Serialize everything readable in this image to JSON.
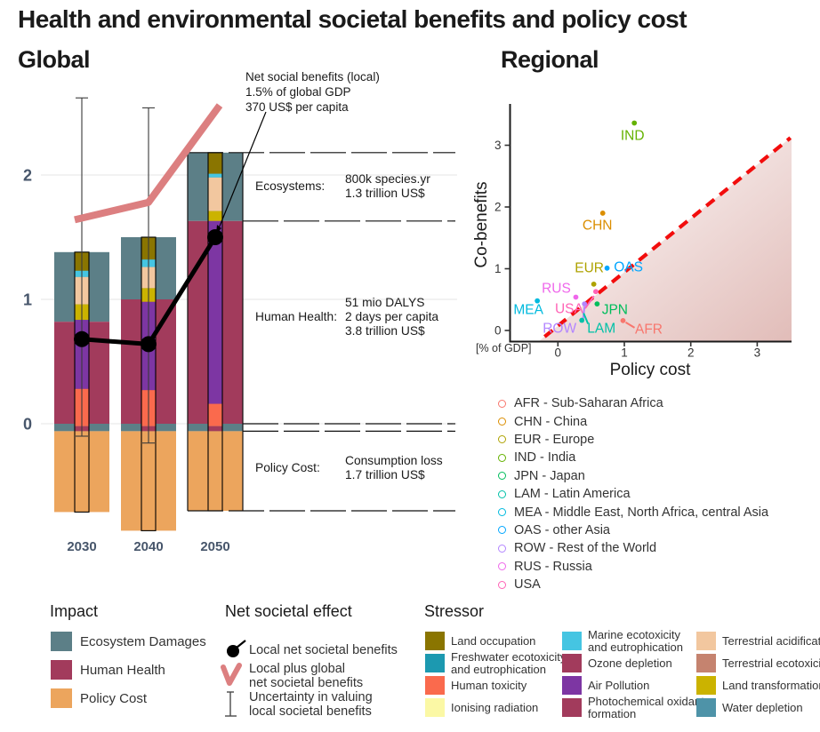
{
  "title": "Health and environmental societal benefits and policy cost",
  "colors": {
    "impact": {
      "Ecosystem Damages": "#5C7F87",
      "Human Health": "#A23B5C",
      "Policy Cost": "#ECA55D"
    },
    "stressor": {
      "Land occupation": "#8A7500",
      "Freshwater ecotoxicity and eutrophication": "#1C99B0",
      "Human toxicity": "#FA6A4D",
      "Ionising radiation": "#FBF8A5",
      "Marine ecotoxicity and eutrophication": "#45C5E2",
      "Ozone depletion": "#A23B5C",
      "Air Pollution": "#7D36A3",
      "Photochemical oxidant formation": "#A23B5C",
      "Terrestrial acidification": "#F2C79F",
      "Terrestrial ecotoxicity": "#C5836F",
      "Land transformation": "#CBB300",
      "Water depletion": "#4E93A8"
    },
    "regions": {
      "AFR": "#F8766D",
      "CHN": "#DB8E00",
      "EUR": "#AEA200",
      "IND": "#64B200",
      "JPN": "#00BD5C",
      "LAM": "#00C1A7",
      "MEA": "#00BADE",
      "OAS": "#00A6FF",
      "ROW": "#B385FF",
      "RUS": "#EF67EB",
      "USA": "#FF63B6"
    },
    "local_net_line": "#000000",
    "local_plus_global_line": "#DC7F80",
    "diagonal": "#F20D0D",
    "axis_text": "#47566B",
    "grid": "#EBEBEB"
  },
  "chart_data": [
    {
      "type": "bar",
      "title": "Global",
      "categories": [
        "2030",
        "2040",
        "2050"
      ],
      "yticks": [
        0,
        1,
        2
      ],
      "ylim": [
        -1.05,
        2.7
      ],
      "grid": true,
      "bars": [
        {
          "category": "2030",
          "impact": [
            {
              "name": "Ecosystem Damages",
              "from": 0.82,
              "to": 1.38
            },
            {
              "name": "Human Health",
              "from": 0,
              "to": 0.82
            },
            {
              "name": "Ecosystem Damages",
              "from": -0.06,
              "to": 0
            },
            {
              "name": "Policy Cost",
              "from": -0.71,
              "to": -0.06
            }
          ],
          "stressors": [
            {
              "name": "Land occupation",
              "from": 1.23,
              "to": 1.38
            },
            {
              "name": "Marine ecotoxicity and eutrophication",
              "from": 1.18,
              "to": 1.23
            },
            {
              "name": "Terrestrial acidification",
              "from": 0.96,
              "to": 1.18
            },
            {
              "name": "Land transformation",
              "from": 0.835,
              "to": 0.96
            },
            {
              "name": "Air Pollution",
              "from": 0.28,
              "to": 0.835
            },
            {
              "name": "Human toxicity",
              "from": -0.02,
              "to": 0.28
            },
            {
              "name": "Ozone depletion",
              "from": -0.06,
              "to": -0.02
            },
            {
              "name": "Policy Cost",
              "from": -0.71,
              "to": -0.06
            }
          ],
          "uncertainty": [
            -0.1,
            2.62
          ],
          "local_net": 0.68,
          "local_plus_global": 1.64
        },
        {
          "category": "2040",
          "impact": [
            {
              "name": "Ecosystem Damages",
              "from": 1.0,
              "to": 1.5
            },
            {
              "name": "Human Health",
              "from": 0,
              "to": 1.0
            },
            {
              "name": "Ecosystem Damages",
              "from": -0.06,
              "to": 0
            },
            {
              "name": "Policy Cost",
              "from": -0.86,
              "to": -0.06
            }
          ],
          "stressors": [
            {
              "name": "Land occupation",
              "from": 1.32,
              "to": 1.5
            },
            {
              "name": "Marine ecotoxicity and eutrophication",
              "from": 1.26,
              "to": 1.32
            },
            {
              "name": "Terrestrial acidification",
              "from": 1.09,
              "to": 1.26
            },
            {
              "name": "Land transformation",
              "from": 0.98,
              "to": 1.09
            },
            {
              "name": "Air Pollution",
              "from": 0.27,
              "to": 0.98
            },
            {
              "name": "Human toxicity",
              "from": -0.02,
              "to": 0.27
            },
            {
              "name": "Ozone depletion",
              "from": -0.06,
              "to": -0.02
            },
            {
              "name": "Policy Cost",
              "from": -0.86,
              "to": -0.06
            }
          ],
          "uncertainty": [
            -0.155,
            2.54
          ],
          "local_net": 0.64,
          "local_plus_global": 1.78
        },
        {
          "category": "2050",
          "impact": [
            {
              "name": "Ecosystem Damages",
              "from": 1.63,
              "to": 2.18
            },
            {
              "name": "Human Health",
              "from": 0,
              "to": 1.63
            },
            {
              "name": "Ecosystem Damages",
              "from": -0.06,
              "to": 0
            },
            {
              "name": "Policy Cost",
              "from": -0.7,
              "to": -0.06
            }
          ],
          "stressors": [
            {
              "name": "Land occupation",
              "from": 2.01,
              "to": 2.18
            },
            {
              "name": "Marine ecotoxicity and eutrophication",
              "from": 1.98,
              "to": 2.01
            },
            {
              "name": "Terrestrial acidification",
              "from": 1.71,
              "to": 1.98
            },
            {
              "name": "Land transformation",
              "from": 1.63,
              "to": 1.71
            },
            {
              "name": "Air Pollution",
              "from": 0.16,
              "to": 1.63
            },
            {
              "name": "Human toxicity",
              "from": -0.02,
              "to": 0.16
            },
            {
              "name": "Ozone depletion",
              "from": -0.06,
              "to": -0.02
            },
            {
              "name": "Policy Cost",
              "from": -0.7,
              "to": -0.06
            }
          ],
          "uncertainty": null,
          "local_net": 1.5,
          "local_plus_global": 2.56
        }
      ],
      "annotation": [
        "Net social benefits (local)",
        "1.5% of global GDP",
        "370 US$ per capita"
      ],
      "right_labels": [
        {
          "label": "Ecosystems:",
          "values": [
            "800k species.yr",
            "1.3 trillion US$"
          ],
          "from": 1.63,
          "to": 2.18
        },
        {
          "label": "Human Health:",
          "values": [
            "51 mio DALYS",
            "2 days per capita",
            "3.8 trillion US$"
          ],
          "from": 0,
          "to": 1.63
        },
        {
          "label": "Policy Cost:",
          "values": [
            "Consumption loss",
            "1.7 trillion US$"
          ],
          "from": -0.7,
          "to": -0.06
        }
      ]
    },
    {
      "type": "scatter",
      "title": "Regional",
      "xlabel": "Policy cost",
      "ylabel": "Co-benefits",
      "axis_unit": "[% of GDP]",
      "xticks": [
        0,
        1,
        2,
        3
      ],
      "yticks": [
        0,
        1,
        2,
        3
      ],
      "xlim": [
        -0.72,
        3.52
      ],
      "ylim": [
        -0.18,
        3.68
      ],
      "diagonal": {
        "from": [
          -0.2,
          -0.1
        ],
        "to": [
          3.5,
          3.12
        ],
        "style": "dashed"
      },
      "points": [
        {
          "code": "IND",
          "x": 1.15,
          "y": 3.36,
          "label_offset": [
            -2,
            13.5
          ]
        },
        {
          "code": "CHN",
          "x": 0.675,
          "y": 1.9,
          "label_offset": [
            -6,
            13
          ]
        },
        {
          "code": "OAS",
          "x": 0.74,
          "y": 1.01,
          "label_offset": [
            24,
            -2
          ]
        },
        {
          "code": "EUR",
          "x": 0.54,
          "y": 0.75,
          "label_offset": [
            -5,
            -19
          ]
        },
        {
          "code": "USA",
          "x": 0.57,
          "y": 0.63,
          "label_offset": [
            -30,
            19
          ],
          "connector": [
            [
              -12,
              19
            ],
            [
              -2,
              5
            ]
          ]
        },
        {
          "code": "RUS",
          "x": 0.27,
          "y": 0.54,
          "label_offset": [
            -22,
            -10.5
          ]
        },
        {
          "code": "MEA",
          "x": -0.31,
          "y": 0.48,
          "label_offset": [
            -10,
            9.5
          ]
        },
        {
          "code": "JPN",
          "x": 0.59,
          "y": 0.43,
          "label_offset": [
            20,
            6
          ]
        },
        {
          "code": "ROW",
          "x": 0.4,
          "y": 0.43,
          "label_offset": [
            -28,
            27
          ],
          "connector": [
            [
              -2,
              21
            ],
            [
              0,
              3
            ]
          ]
        },
        {
          "code": "LAM",
          "x": 0.36,
          "y": 0.165,
          "label_offset": [
            22,
            8.5
          ],
          "connector": [
            [
              7,
              4
            ],
            [
              2,
              -8
            ]
          ]
        },
        {
          "code": "AFR",
          "x": 0.98,
          "y": 0.16,
          "label_offset": [
            29,
            9
          ],
          "connector": [
            [
              3,
              2
            ],
            [
              13,
              8
            ]
          ]
        }
      ]
    }
  ],
  "legends": {
    "impact": {
      "title": "Impact",
      "items": [
        "Ecosystem Damages",
        "Human Health",
        "Policy Cost"
      ]
    },
    "net_effect": {
      "title": "Net societal effect",
      "items": [
        {
          "glyph": "dot-line",
          "lines": [
            "Local net societal benefits"
          ]
        },
        {
          "glyph": "pink-curve",
          "lines": [
            "Local plus global",
            "net societal benefits"
          ]
        },
        {
          "glyph": "error-bar",
          "lines": [
            "Uncertainty in valuing",
            "local societal benefits"
          ]
        }
      ]
    },
    "stressor": {
      "title": "Stressor",
      "columns": [
        [
          {
            "name": "Land occupation",
            "lines": [
              "Land occupation"
            ]
          },
          {
            "name": "Freshwater ecotoxicity and eutrophication",
            "lines": [
              "Freshwater ecotoxicity",
              "and eutrophication"
            ]
          },
          {
            "name": "Human toxicity",
            "lines": [
              "Human toxicity"
            ]
          },
          {
            "name": "Ionising radiation",
            "lines": [
              "Ionising radiation"
            ]
          }
        ],
        [
          {
            "name": "Marine ecotoxicity and eutrophication",
            "lines": [
              "Marine ecotoxicity",
              "and eutrophication"
            ]
          },
          {
            "name": "Ozone depletion",
            "lines": [
              "Ozone depletion"
            ]
          },
          {
            "name": "Air Pollution",
            "lines": [
              "Air Pollution"
            ]
          },
          {
            "name": "Photochemical oxidant formation",
            "lines": [
              "Photochemical oxidant",
              "formation"
            ]
          }
        ],
        [
          {
            "name": "Terrestrial acidification",
            "lines": [
              "Terrestrial acidification"
            ]
          },
          {
            "name": "Terrestrial ecotoxicity",
            "lines": [
              "Terrestrial ecotoxicity"
            ]
          },
          {
            "name": "Land transformation",
            "lines": [
              "Land transformation"
            ]
          },
          {
            "name": "Water depletion",
            "lines": [
              "Water depletion"
            ]
          }
        ]
      ]
    },
    "regions": {
      "items": [
        {
          "code": "AFR",
          "label": "AFR - Sub-Saharan Africa"
        },
        {
          "code": "CHN",
          "label": "CHN - China"
        },
        {
          "code": "EUR",
          "label": "EUR - Europe"
        },
        {
          "code": "IND",
          "label": "IND - India"
        },
        {
          "code": "JPN",
          "label": "JPN - Japan"
        },
        {
          "code": "LAM",
          "label": "LAM - Latin America"
        },
        {
          "code": "MEA",
          "label": "MEA - Middle East, North Africa, central Asia"
        },
        {
          "code": "OAS",
          "label": "OAS - other Asia"
        },
        {
          "code": "ROW",
          "label": "ROW - Rest of the World"
        },
        {
          "code": "RUS",
          "label": "RUS - Russia"
        },
        {
          "code": "USA",
          "label": "USA"
        }
      ]
    }
  }
}
